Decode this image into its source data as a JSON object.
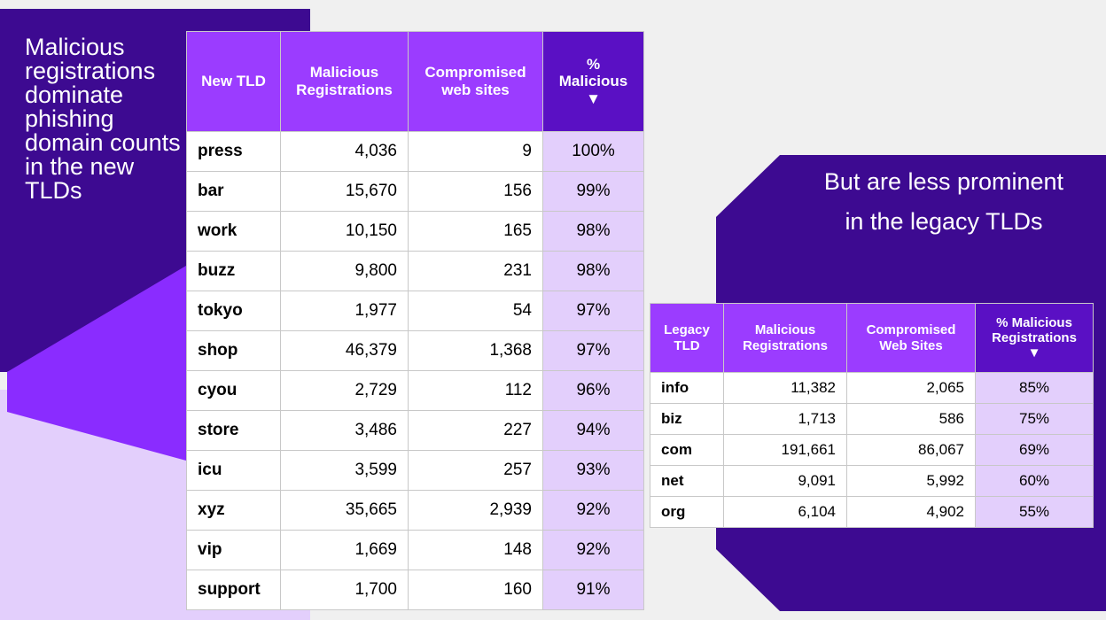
{
  "left": {
    "heading": "Malicious registrations dominate phishing domain counts in the new TLDs",
    "table": {
      "header": [
        "New TLD",
        "Malicious Registrations",
        "Compromised web sites",
        "% Malicious ▼"
      ],
      "rows": [
        [
          "press",
          "4,036",
          "9",
          "100%"
        ],
        [
          "bar",
          "15,670",
          "156",
          "99%"
        ],
        [
          "work",
          "10,150",
          "165",
          "98%"
        ],
        [
          "buzz",
          "9,800",
          "231",
          "98%"
        ],
        [
          "tokyo",
          "1,977",
          "54",
          "97%"
        ],
        [
          "shop",
          "46,379",
          "1,368",
          "97%"
        ],
        [
          "cyou",
          "2,729",
          "112",
          "96%"
        ],
        [
          "store",
          "3,486",
          "227",
          "94%"
        ],
        [
          "icu",
          "3,599",
          "257",
          "93%"
        ],
        [
          "xyz",
          "35,665",
          "2,939",
          "92%"
        ],
        [
          "vip",
          "1,669",
          "148",
          "92%"
        ],
        [
          "support",
          "1,700",
          "160",
          "91%"
        ]
      ]
    }
  },
  "right": {
    "heading": "But are less prominent in the legacy TLDs",
    "table": {
      "header": [
        "Legacy TLD",
        "Malicious Registrations",
        "Compromised Web Sites",
        "% Malicious Registrations ▼"
      ],
      "rows": [
        [
          "info",
          "11,382",
          "2,065",
          "85%"
        ],
        [
          "biz",
          "1,713",
          "586",
          "75%"
        ],
        [
          "com",
          "191,661",
          "86,067",
          "69%"
        ],
        [
          "net",
          "9,091",
          "5,992",
          "60%"
        ],
        [
          "org",
          "6,104",
          "4,902",
          "55%"
        ]
      ]
    }
  }
}
